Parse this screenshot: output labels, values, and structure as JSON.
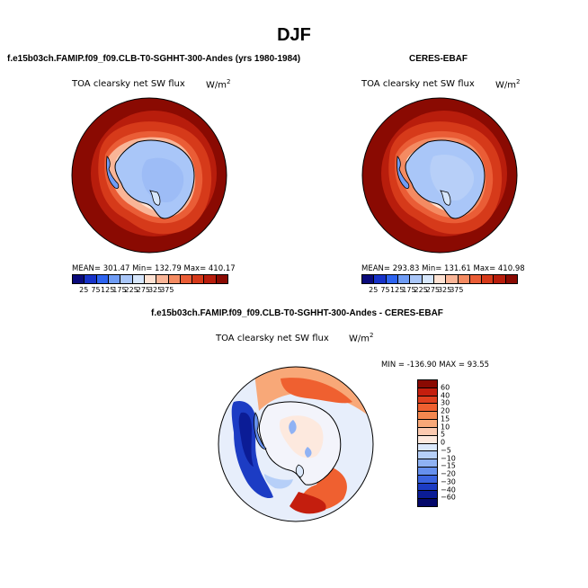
{
  "title": "DJF",
  "panels": [
    {
      "title": "f.e15b03ch.FAMIP.f09_f09.CLB-T0-SGHHT-300-Andes (yrs 1980-1984)",
      "variable": "TOA clearsky net SW flux",
      "units_base": "W/m",
      "units_exp": "2",
      "stats": "MEAN= 301.47   Min= 132.79   Max= 410.17"
    },
    {
      "title": "CERES-EBAF",
      "variable": "TOA clearsky net SW flux",
      "units_base": "W/m",
      "units_exp": "2",
      "stats": "MEAN= 293.83   Min= 131.61   Max= 410.98"
    },
    {
      "title": "f.e15b03ch.FAMIP.f09_f09.CLB-T0-SGHHT-300-Andes - CERES-EBAF",
      "variable": "TOA clearsky net SW flux",
      "units_base": "W/m",
      "units_exp": "2",
      "stats": "MIN = -136.90  MAX =  93.55"
    }
  ],
  "colorbar_abs": {
    "labels": [
      "25",
      "75",
      "125",
      "175",
      "225",
      "275",
      "325",
      "375"
    ],
    "colors": [
      "#0a0a7a",
      "#1732c8",
      "#2e64f0",
      "#6f9cf5",
      "#a9c6f8",
      "#d6e6fb",
      "#fde2d3",
      "#f9b597",
      "#f48b62",
      "#ea5d36",
      "#d63a1a",
      "#b81d0c",
      "#8a0a02"
    ]
  },
  "colorbar_diff": {
    "labels": [
      "60",
      "40",
      "30",
      "20",
      "15",
      "10",
      "5",
      "0",
      "-5",
      "-10",
      "-15",
      "-20",
      "-30",
      "-40",
      "-60"
    ],
    "colors": [
      "#8a0a02",
      "#c41e0e",
      "#e0401f",
      "#ef6030",
      "#f4874f",
      "#f8a878",
      "#fccab0",
      "#fde9de",
      "#dbe8fb",
      "#b6cff8",
      "#8fb2f4",
      "#6690ee",
      "#3b64e0",
      "#1c3cc4",
      "#0b1c96",
      "#04086a"
    ]
  }
}
